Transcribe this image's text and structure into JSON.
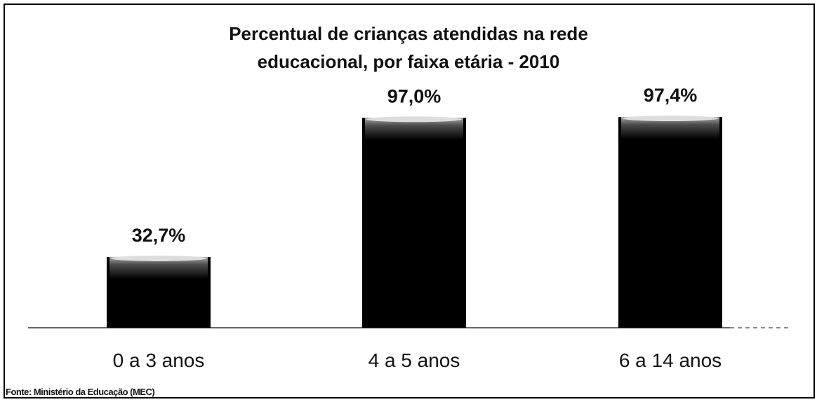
{
  "chart_data": {
    "type": "bar",
    "title": "Percentual de crianças atendidas na rede educacional, por faixa etária - 2010",
    "categories": [
      "0 a 3 anos",
      "4 a 5 anos",
      "6 a 14 anos"
    ],
    "values": [
      32.7,
      97.0,
      97.4
    ],
    "value_labels": [
      "32,7%",
      "97,0%",
      "97,4%"
    ],
    "color": "#000000",
    "source": "Fonte: Ministério da Educação (MEC)"
  }
}
